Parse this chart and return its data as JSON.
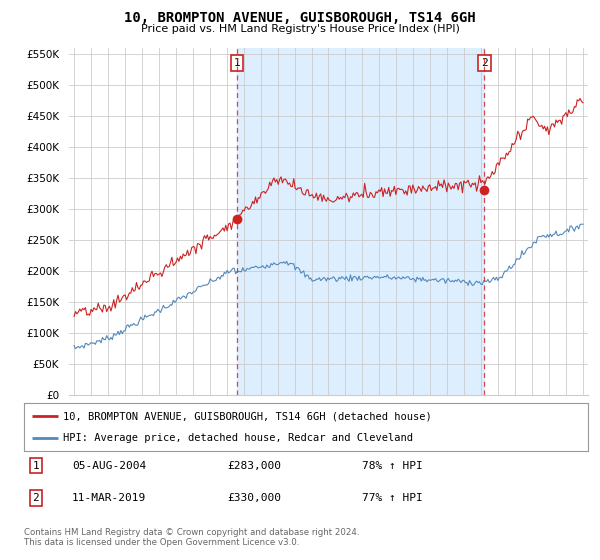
{
  "title": "10, BROMPTON AVENUE, GUISBOROUGH, TS14 6GH",
  "subtitle": "Price paid vs. HM Land Registry's House Price Index (HPI)",
  "line1_label": "10, BROMPTON AVENUE, GUISBOROUGH, TS14 6GH (detached house)",
  "line2_label": "HPI: Average price, detached house, Redcar and Cleveland",
  "line1_color": "#cc2222",
  "line2_color": "#5588bb",
  "annotation1_num": "1",
  "annotation1_date": "05-AUG-2004",
  "annotation1_price": "£283,000",
  "annotation1_hpi": "78% ↑ HPI",
  "annotation2_num": "2",
  "annotation2_date": "11-MAR-2019",
  "annotation2_price": "£330,000",
  "annotation2_hpi": "77% ↑ HPI",
  "footer": "Contains HM Land Registry data © Crown copyright and database right 2024.\nThis data is licensed under the Open Government Licence v3.0.",
  "ylim": [
    0,
    560000
  ],
  "yticks": [
    0,
    50000,
    100000,
    150000,
    200000,
    250000,
    300000,
    350000,
    400000,
    450000,
    500000,
    550000
  ],
  "background_color": "#ffffff",
  "plot_bg_color": "#ffffff",
  "shade_color": "#ddeeff",
  "grid_color": "#cccccc",
  "vline1_x": 2004.6,
  "vline2_x": 2019.19,
  "marker1_x": 2004.6,
  "marker1_y": 283000,
  "marker2_x": 2019.19,
  "marker2_y": 330000,
  "xmin": 1995,
  "xmax": 2025
}
